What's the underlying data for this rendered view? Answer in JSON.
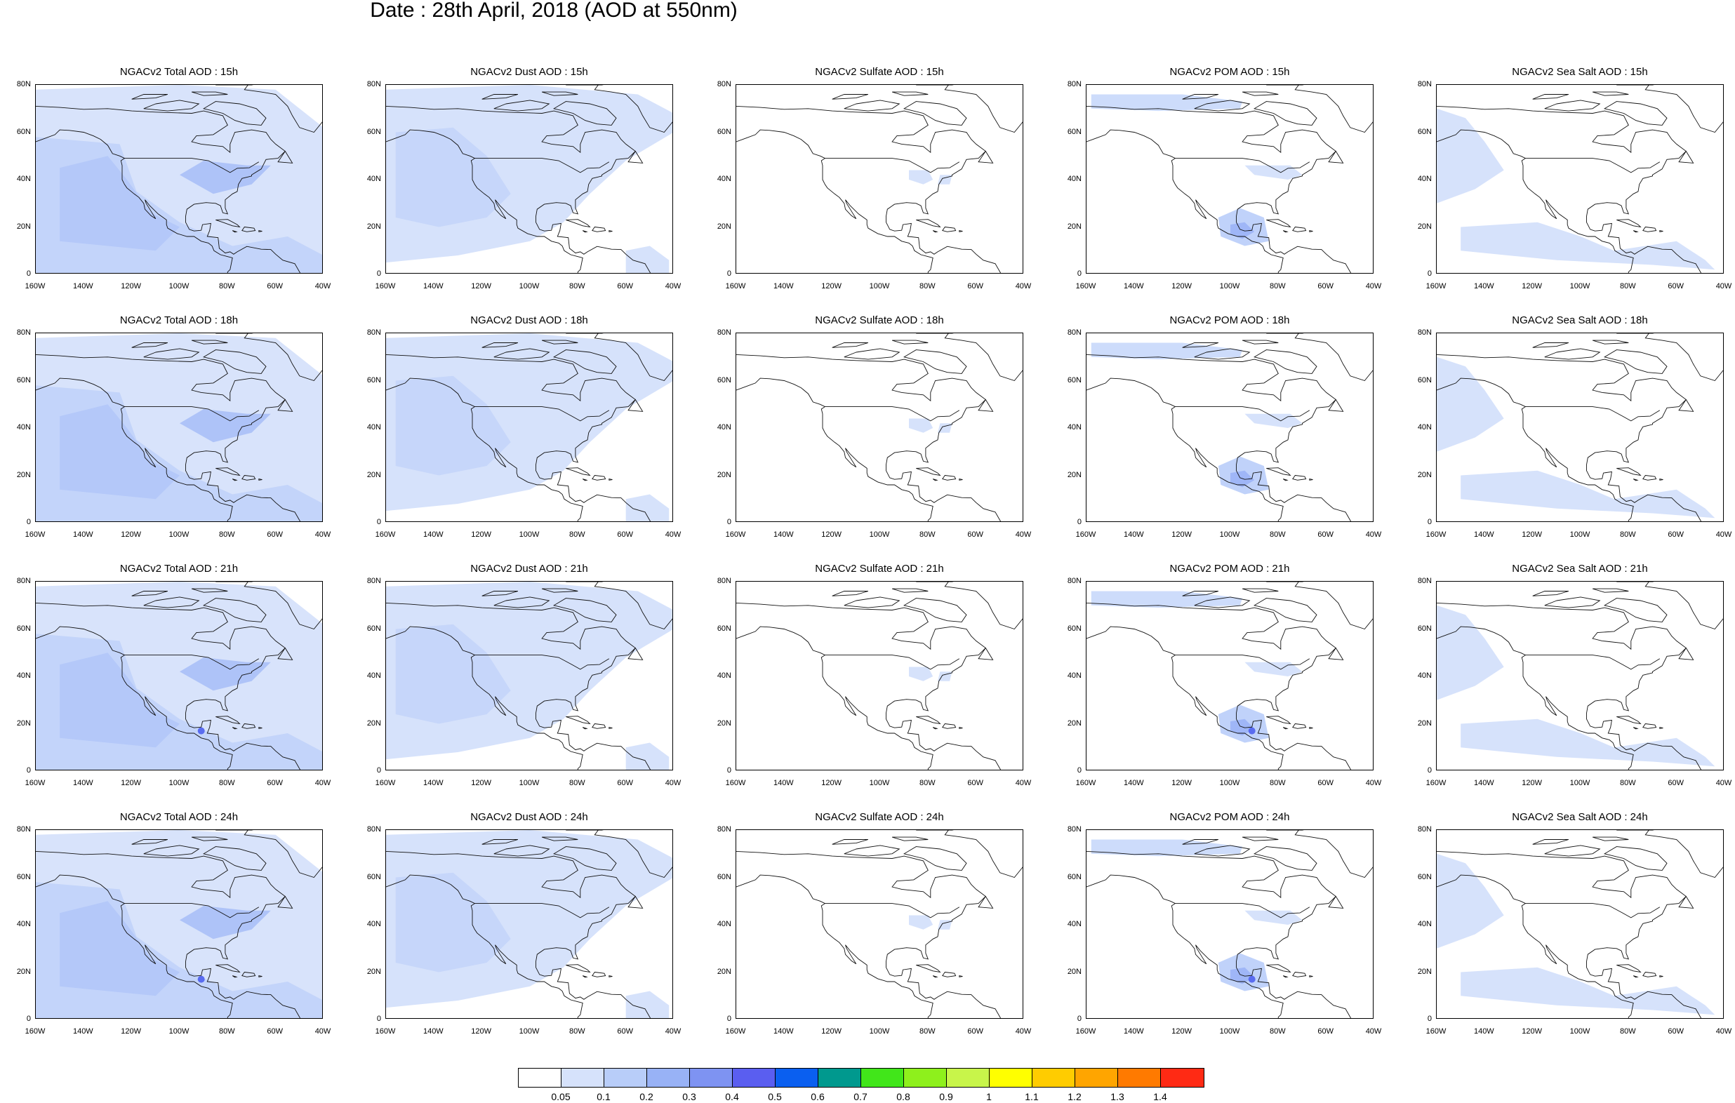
{
  "figure": {
    "title": "Date : 28th April, 2018 (AOD at 550nm)",
    "lat_ticks": [
      "0",
      "20N",
      "40N",
      "60N",
      "80N"
    ],
    "lon_ticks": [
      "160W",
      "140W",
      "120W",
      "100W",
      "80W",
      "60W",
      "40W"
    ],
    "rows": [
      {
        "hour": "15h",
        "panels": [
          {
            "title": "NGACv2 Total AOD : 15h",
            "species": "total"
          },
          {
            "title": "NGACv2 Dust AOD : 15h",
            "species": "dust"
          },
          {
            "title": "NGACv2 Sulfate AOD : 15h",
            "species": "sulfate"
          },
          {
            "title": "NGACv2 POM AOD : 15h",
            "species": "pom"
          },
          {
            "title": "NGACv2 Sea Salt AOD : 15h",
            "species": "seasalt"
          }
        ]
      },
      {
        "hour": "18h",
        "panels": [
          {
            "title": "NGACv2 Total AOD : 18h",
            "species": "total"
          },
          {
            "title": "NGACv2 Dust AOD : 18h",
            "species": "dust"
          },
          {
            "title": "NGACv2 Sulfate AOD : 18h",
            "species": "sulfate"
          },
          {
            "title": "NGACv2 POM AOD : 18h",
            "species": "pom"
          },
          {
            "title": "NGACv2 Sea Salt AOD : 18h",
            "species": "seasalt"
          }
        ]
      },
      {
        "hour": "21h",
        "panels": [
          {
            "title": "NGACv2 Total AOD : 21h",
            "species": "total"
          },
          {
            "title": "NGACv2 Dust AOD : 21h",
            "species": "dust"
          },
          {
            "title": "NGACv2 Sulfate AOD : 21h",
            "species": "sulfate"
          },
          {
            "title": "NGACv2 POM AOD : 21h",
            "species": "pom"
          },
          {
            "title": "NGACv2 Sea Salt AOD : 21h",
            "species": "seasalt"
          }
        ]
      },
      {
        "hour": "24h",
        "panels": [
          {
            "title": "NGACv2 Total AOD : 24h",
            "species": "total"
          },
          {
            "title": "NGACv2 Dust AOD : 24h",
            "species": "dust"
          },
          {
            "title": "NGACv2 Sulfate AOD : 24h",
            "species": "sulfate"
          },
          {
            "title": "NGACv2 POM AOD : 24h",
            "species": "pom"
          },
          {
            "title": "NGACv2 Sea Salt  AOD : 24h",
            "species": "seasalt"
          }
        ]
      }
    ]
  },
  "colorbar": {
    "colors": [
      "#ffffff",
      "#d6e2fb",
      "#b8cdf9",
      "#98b2f6",
      "#7e93f2",
      "#5a5ef0",
      "#0a5ff0",
      "#00998e",
      "#41e61a",
      "#8ef01c",
      "#c8f54a",
      "#ffff00",
      "#ffcc00",
      "#ffa500",
      "#ff7a00",
      "#ff2a14"
    ],
    "labels": [
      "0.05",
      "0.1",
      "0.2",
      "0.3",
      "0.4",
      "0.5",
      "0.6",
      "0.7",
      "0.8",
      "0.9",
      "1",
      "1.1",
      "1.2",
      "1.3",
      "1.4"
    ]
  }
}
